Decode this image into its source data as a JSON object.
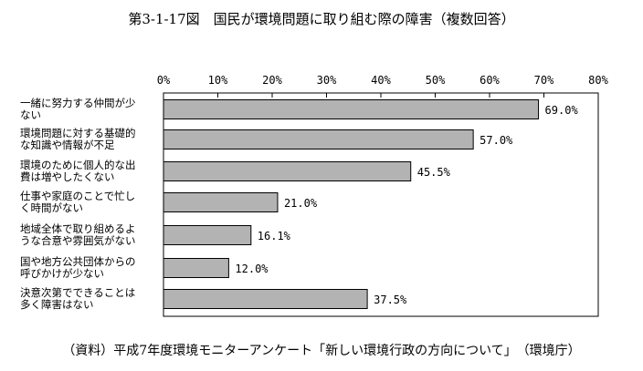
{
  "chart_data": {
    "type": "bar",
    "orientation": "horizontal",
    "title": "第3-1-17図　国民が環境問題に取り組む際の障害（複数回答）",
    "categories": [
      [
        "一緒に努力する仲間が少",
        "ない"
      ],
      [
        "環境問題に対する基礎的",
        "な知識や情報が不足"
      ],
      [
        "環境のために個人的な出",
        "費は増やしたくない"
      ],
      [
        "仕事や家庭のことで忙し",
        "く時間がない"
      ],
      [
        "地域全体で取り組めるよ",
        "うな合意や雰囲気がない"
      ],
      [
        "国や地方公共団体からの",
        "呼びかけが少ない"
      ],
      [
        "決意次第でできることは",
        "多く障害はない"
      ]
    ],
    "values": [
      69.0,
      57.0,
      45.5,
      21.0,
      16.1,
      12.0,
      37.5
    ],
    "value_labels": [
      "69.0%",
      "57.0%",
      "45.5%",
      "21.0%",
      "16.1%",
      "12.0%",
      "37.5%"
    ],
    "xlim": [
      0,
      80
    ],
    "xticks": [
      0,
      10,
      20,
      30,
      40,
      50,
      60,
      70,
      80
    ],
    "xtick_labels": [
      "0%",
      "10%",
      "20%",
      "30%",
      "40%",
      "50%",
      "60%",
      "70%",
      "80%"
    ],
    "xaxis_position": "top",
    "grid": false,
    "bar_color": "#b3b3b3",
    "bar_edge_color": "#000000"
  },
  "source_note": "（資料）平成7年度環境モニターアンケート「新しい環境行政の方向について」　（環境庁）"
}
